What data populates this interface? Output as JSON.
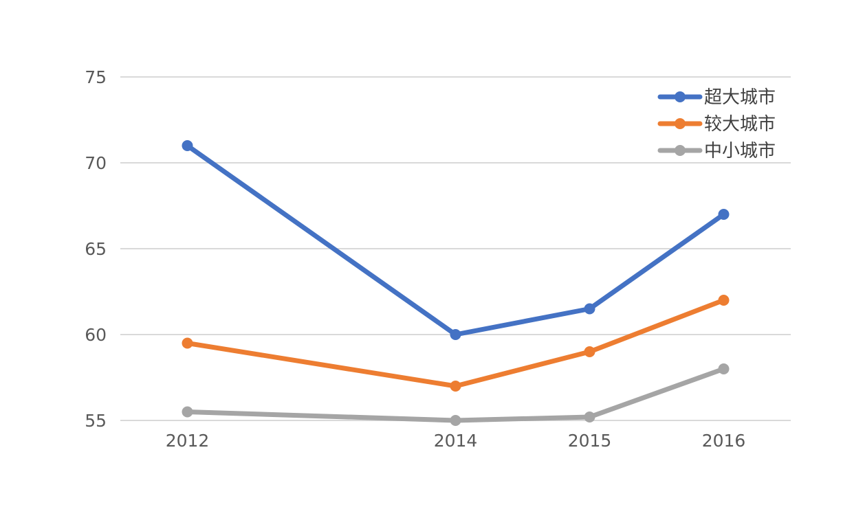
{
  "chart_data": {
    "type": "line",
    "title": "",
    "xlabel": "",
    "ylabel": "",
    "x": [
      "2012",
      "2014",
      "2015",
      "2016"
    ],
    "x_numeric": [
      2012,
      2014,
      2015,
      2016
    ],
    "ylim": [
      55,
      75
    ],
    "yticks": [
      55,
      60,
      65,
      70,
      75
    ],
    "grid": true,
    "legend_position": "top-right",
    "series": [
      {
        "name": "超大城市",
        "color": "#4472C4",
        "values": [
          71,
          60,
          61.5,
          67
        ]
      },
      {
        "name": "较大城市",
        "color": "#ED7D31",
        "values": [
          59.5,
          57,
          59,
          62
        ]
      },
      {
        "name": "中小城市",
        "color": "#A5A5A5",
        "values": [
          55.5,
          55,
          55.2,
          58
        ]
      }
    ]
  }
}
